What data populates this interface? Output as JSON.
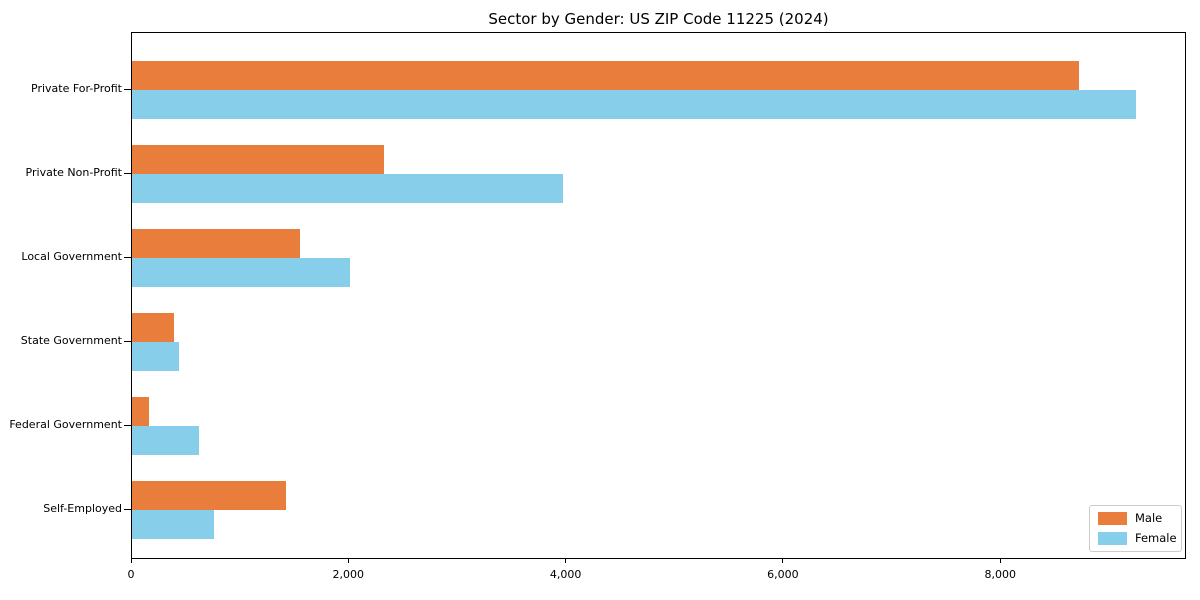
{
  "chart_data": {
    "type": "bar",
    "orientation": "horizontal",
    "title": "Sector by Gender: US ZIP Code 11225 (2024)",
    "categories": [
      "Private For-Profit",
      "Private Non-Profit",
      "Local Government",
      "State Government",
      "Federal Government",
      "Self-Employed"
    ],
    "series": [
      {
        "name": "Male",
        "color": "#E87D3C",
        "values": [
          8720,
          2320,
          1550,
          390,
          155,
          1420
        ]
      },
      {
        "name": "Female",
        "color": "#87CEEB",
        "values": [
          9240,
          3970,
          2010,
          430,
          615,
          750
        ]
      }
    ],
    "xlim": [
      0,
      9710
    ],
    "xticks": [
      {
        "value": 0,
        "label": "0"
      },
      {
        "value": 2000,
        "label": "2,000"
      },
      {
        "value": 4000,
        "label": "4,000"
      },
      {
        "value": 6000,
        "label": "6,000"
      },
      {
        "value": 8000,
        "label": "8,000"
      }
    ],
    "grid": false,
    "legend": {
      "position": "lower-right"
    }
  }
}
